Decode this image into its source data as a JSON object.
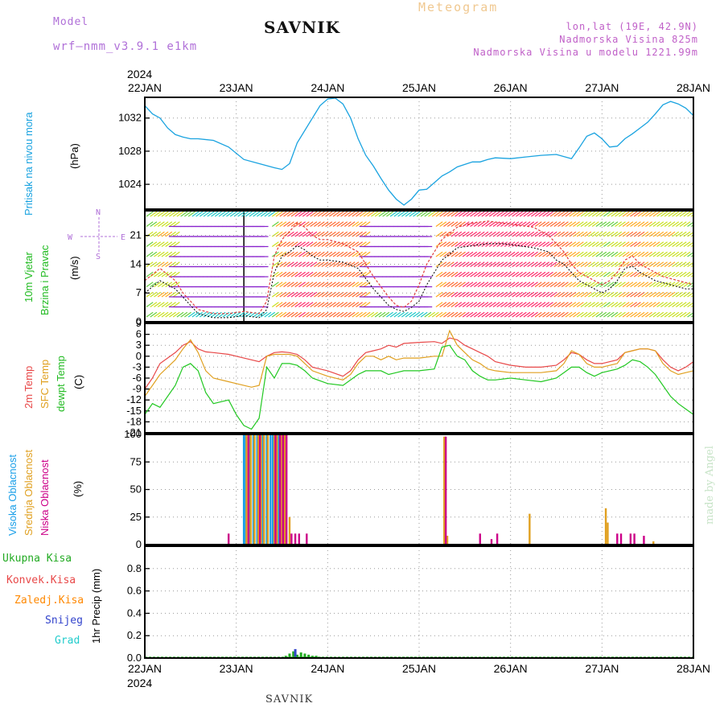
{
  "header": {
    "model_label": "Model",
    "model_name": "wrf–nmm_v3.9.1  e1km",
    "station": "SAVNIK",
    "meteogram": "Meteogram",
    "lonlat": "lon,lat (19E, 42.9N)",
    "elev": "Nadmorska Visina 825m",
    "elev_model": "Nadmorska Visina u modelu 1221.99m",
    "footer_station": "SAVNIK",
    "watermark": "made by Angel",
    "year_top": "2024",
    "year_bottom": "2024"
  },
  "colors": {
    "pressure": "#1aa3e0",
    "wind_speed_mean": "#000000",
    "wind_gust": "#e04040",
    "temp2m": "#e84848",
    "sfc_temp": "#e0a020",
    "dewpt": "#22c822",
    "cloud_high": "#1a9fe8",
    "cloud_mid": "#e0a020",
    "cloud_low": "#cc0088",
    "precip_total": "#22aa22",
    "precip_conv": "#e84848",
    "precip_frozen": "#ff8800",
    "snow": "#3344cc",
    "grad": "#22cccc",
    "wind_east": "#8822cc",
    "wind_west": "#ff3355"
  },
  "chart_data": [
    {
      "type": "line",
      "panel": "pressure",
      "labels": [
        "Pritisak na nivou mora",
        "(hPa)"
      ],
      "x": [
        "22JAN",
        "23JAN",
        "24JAN",
        "25JAN",
        "26JAN",
        "27JAN",
        "28JAN"
      ],
      "xlim": [
        0,
        144
      ],
      "ylim": [
        1021,
        1034.5
      ],
      "yticks": [
        1024,
        1028,
        1032
      ],
      "series": [
        {
          "x": [
            0,
            2,
            4,
            6,
            8,
            10,
            12,
            14,
            18,
            22,
            26,
            30,
            34,
            36,
            38,
            40,
            44,
            46,
            48,
            50,
            52,
            54,
            56,
            58,
            60,
            62,
            64,
            66,
            68,
            70,
            72,
            74,
            76,
            78,
            80,
            82,
            84,
            86,
            88,
            90,
            92,
            96,
            100,
            104,
            108,
            112,
            114,
            116,
            118,
            120,
            122,
            124,
            126,
            128,
            130,
            132,
            134,
            136,
            138,
            140,
            142,
            144
          ],
          "y": [
            1033.5,
            1032.5,
            1032,
            1030.8,
            1030,
            1029.7,
            1029.5,
            1029.5,
            1029.3,
            1028.5,
            1027,
            1026.5,
            1026,
            1025.8,
            1026.5,
            1029,
            1032,
            1033.5,
            1034.3,
            1034.4,
            1033.7,
            1032,
            1029.5,
            1027.5,
            1026.2,
            1024.7,
            1023.3,
            1022.2,
            1021.5,
            1022.2,
            1023.3,
            1023.4,
            1024.2,
            1025,
            1025.5,
            1026.1,
            1026.4,
            1026.7,
            1026.7,
            1027,
            1027.2,
            1027.1,
            1027.3,
            1027.5,
            1027.6,
            1027.1,
            1028.4,
            1029.8,
            1030.2,
            1029.5,
            1028.5,
            1028.6,
            1029.5,
            1030.1,
            1030.8,
            1031.5,
            1032.5,
            1033.6,
            1034,
            1033.7,
            1033.2,
            1032.3
          ]
        }
      ]
    },
    {
      "type": "line",
      "panel": "wind",
      "labels": [
        "10m Vjetar",
        "Brzina i Pravac",
        "(m/s)"
      ],
      "xlim": [
        0,
        144
      ],
      "ylim": [
        0,
        27
      ],
      "yticks": [
        0,
        7,
        14,
        21
      ],
      "compass": [
        "N",
        "S",
        "W",
        "E"
      ],
      "series": [
        {
          "name": "mean",
          "x": [
            0,
            4,
            8,
            10,
            12,
            14,
            18,
            22,
            26,
            30,
            32,
            34,
            36,
            38,
            40,
            42,
            44,
            46,
            48,
            52,
            56,
            60,
            64,
            66,
            68,
            70,
            72,
            74,
            78,
            82,
            86,
            90,
            94,
            98,
            102,
            106,
            108,
            110,
            112,
            114,
            116,
            118,
            120,
            122,
            124,
            126,
            128,
            130,
            132,
            134,
            136,
            138,
            140,
            142,
            144
          ],
          "y": [
            7,
            10,
            8,
            6,
            4,
            2,
            1,
            1,
            1.5,
            1,
            3,
            12,
            16,
            17,
            18.5,
            17.5,
            16,
            15,
            15,
            14.5,
            13,
            8,
            4,
            3,
            2.5,
            3.5,
            5,
            9,
            15,
            18,
            18.5,
            19,
            19,
            18.5,
            18,
            17,
            15,
            14,
            12,
            10,
            9,
            8,
            7,
            8,
            10,
            13,
            13.5,
            12,
            11,
            10,
            9.5,
            9,
            8.5,
            8,
            8
          ]
        },
        {
          "name": "gust",
          "x": [
            0,
            4,
            8,
            10,
            12,
            14,
            18,
            22,
            26,
            30,
            32,
            34,
            36,
            38,
            40,
            42,
            44,
            46,
            48,
            52,
            56,
            60,
            64,
            66,
            68,
            70,
            72,
            74,
            78,
            82,
            86,
            90,
            94,
            98,
            102,
            106,
            108,
            110,
            112,
            114,
            116,
            118,
            120,
            122,
            124,
            126,
            128,
            130,
            132,
            134,
            136,
            138,
            140,
            142,
            144
          ],
          "y": [
            10,
            13,
            10,
            7,
            5,
            3,
            2,
            2,
            2.5,
            2,
            5,
            16,
            20,
            22,
            24,
            23,
            21,
            20,
            20,
            19,
            17,
            11,
            6,
            4,
            3.5,
            5,
            9,
            14,
            20,
            23,
            24,
            24.5,
            24,
            23.5,
            23,
            21,
            19,
            17,
            14,
            12,
            11,
            10,
            9,
            10,
            12,
            15,
            16,
            14,
            13,
            12,
            11,
            10.5,
            10,
            9.5,
            9
          ]
        }
      ]
    },
    {
      "type": "line",
      "panel": "temperature",
      "labels": [
        "2m Temp",
        "SFC Temp",
        "dewpt Temp",
        "(C)"
      ],
      "xlim": [
        0,
        144
      ],
      "ylim": [
        -21,
        9
      ],
      "yticks": [
        -21,
        -18,
        -15,
        -12,
        -9,
        -6,
        -3,
        0,
        3,
        6,
        9
      ],
      "series": [
        {
          "name": "2m Temp",
          "x": [
            0,
            2,
            4,
            8,
            10,
            12,
            14,
            16,
            18,
            22,
            24,
            26,
            28,
            30,
            32,
            34,
            36,
            38,
            40,
            42,
            44,
            48,
            52,
            54,
            56,
            58,
            60,
            62,
            64,
            66,
            68,
            72,
            76,
            78,
            80,
            82,
            84,
            86,
            88,
            90,
            92,
            96,
            100,
            104,
            108,
            110,
            112,
            114,
            116,
            118,
            120,
            124,
            126,
            128,
            130,
            132,
            134,
            136,
            138,
            140,
            142,
            144
          ],
          "y": [
            -9,
            -6,
            -2,
            1,
            3,
            4,
            2,
            1.2,
            1,
            0.5,
            0,
            -0.5,
            -1,
            -1.5,
            0,
            1,
            1.2,
            1,
            0.5,
            -1,
            -3,
            -4,
            -5.5,
            -4,
            -1,
            1,
            1.5,
            2,
            3,
            2.5,
            3.5,
            3.8,
            4,
            3.5,
            5,
            4.5,
            3,
            2,
            1,
            0,
            -1.5,
            -2.5,
            -3,
            -3,
            -2.5,
            -1,
            1,
            0.5,
            -1,
            -2,
            -2,
            -1,
            1,
            1.5,
            2,
            2,
            1.5,
            -1,
            -3,
            -4,
            -3,
            -1.5
          ]
        },
        {
          "name": "SFC Temp",
          "x": [
            0,
            2,
            4,
            8,
            10,
            12,
            14,
            16,
            18,
            22,
            24,
            26,
            28,
            30,
            32,
            34,
            36,
            38,
            40,
            42,
            44,
            48,
            52,
            54,
            56,
            58,
            60,
            62,
            64,
            66,
            68,
            72,
            76,
            78,
            80,
            82,
            84,
            86,
            88,
            90,
            92,
            96,
            100,
            104,
            108,
            110,
            112,
            114,
            116,
            118,
            120,
            124,
            126,
            128,
            130,
            132,
            134,
            136,
            138,
            140,
            142,
            144
          ],
          "y": [
            -11,
            -8,
            -5,
            -1,
            2,
            4.5,
            1,
            -4,
            -6,
            -7,
            -7.5,
            -8,
            -8.5,
            -8,
            0,
            0.5,
            0.5,
            0.5,
            0,
            -2,
            -4,
            -5.5,
            -6.5,
            -5,
            -2,
            0,
            0,
            -1,
            0,
            -1,
            -0.5,
            -0.5,
            0,
            0,
            7,
            3,
            1,
            -1,
            -2,
            -3.5,
            -4,
            -4.5,
            -4.5,
            -4.5,
            -4,
            -2,
            1.5,
            0.5,
            -2,
            -3,
            -3,
            -2,
            1,
            1.5,
            2,
            2,
            1.5,
            -2,
            -4,
            -5,
            -4.5,
            -4
          ]
        },
        {
          "name": "dewpt Temp",
          "x": [
            0,
            2,
            4,
            8,
            10,
            12,
            14,
            16,
            18,
            22,
            24,
            26,
            28,
            30,
            32,
            34,
            36,
            38,
            40,
            42,
            44,
            48,
            52,
            54,
            56,
            58,
            60,
            62,
            64,
            66,
            68,
            72,
            76,
            78,
            80,
            82,
            84,
            86,
            88,
            90,
            92,
            96,
            100,
            104,
            108,
            110,
            112,
            114,
            116,
            118,
            120,
            124,
            126,
            128,
            130,
            132,
            134,
            136,
            138,
            140,
            142,
            144
          ],
          "y": [
            -16,
            -13,
            -14,
            -8,
            -3,
            -2,
            -4,
            -10,
            -13,
            -12,
            -16,
            -19,
            -20,
            -17,
            -3,
            -6,
            -2,
            -2,
            -2.5,
            -4,
            -6,
            -7.5,
            -8,
            -6.5,
            -5,
            -4,
            -4,
            -4,
            -5,
            -4.5,
            -4,
            -4,
            -3.5,
            2.5,
            3,
            0,
            -1,
            -4,
            -5.5,
            -6.5,
            -6.5,
            -6,
            -6.5,
            -7,
            -6,
            -4.5,
            -3,
            -3,
            -4.5,
            -5.5,
            -4.5,
            -3.5,
            -2.5,
            -1,
            -1.5,
            -3,
            -5,
            -8,
            -11,
            -13,
            -14.5,
            -16
          ]
        }
      ]
    },
    {
      "type": "bar",
      "panel": "clouds",
      "labels": [
        "Visoka Oblacnost",
        "Srednja Oblacnost",
        "Niska Oblacnost",
        "(%)"
      ],
      "xlim": [
        0,
        144
      ],
      "ylim": [
        0,
        100
      ],
      "yticks": [
        0,
        25,
        50,
        75,
        100
      ],
      "series": [
        {
          "name": "Visoka Oblacnost",
          "x": [
            26,
            26.5,
            27.5,
            28.5,
            29.5,
            31,
            32,
            33,
            33.6,
            35
          ],
          "values": [
            100,
            100,
            100,
            100,
            100,
            100,
            100,
            100,
            100,
            100
          ]
        },
        {
          "name": "Srednja Oblacnost",
          "x": [
            26.7,
            27.8,
            28.8,
            29.8,
            30.5,
            31.3,
            32.3,
            34,
            34.7,
            36,
            36.7,
            38,
            78.6,
            79.4,
            101,
            121,
            121.5,
            133.5
          ],
          "values": [
            100,
            100,
            100,
            100,
            100,
            100,
            100,
            100,
            100,
            100,
            100,
            25,
            98,
            8,
            28,
            33,
            20,
            3
          ]
        },
        {
          "name": "Niska Oblacnost",
          "x": [
            22,
            27.2,
            30.2,
            34.3,
            35.5,
            36.3,
            37.2,
            38.5,
            39.5,
            40.5,
            42.5,
            79,
            88,
            91,
            92.5,
            124,
            125,
            127.5,
            128.5,
            131
          ],
          "values": [
            10,
            100,
            100,
            100,
            100,
            100,
            100,
            10,
            10,
            10,
            10,
            98,
            10,
            5,
            10,
            10,
            10,
            10,
            10,
            8
          ]
        }
      ]
    },
    {
      "type": "bar",
      "panel": "precip",
      "labels": [
        "Ukupna Kisa",
        "Konvek.Kisa",
        "Zaledj.Kisa",
        "Snijeg",
        "Grad",
        "1hr Precip (mm)"
      ],
      "xlim": [
        0,
        144
      ],
      "ylim": [
        0,
        1
      ],
      "yticks": [
        0,
        0.2,
        0.4,
        0.6,
        0.8
      ],
      "series": [
        {
          "name": "Ukupna Kisa",
          "x": [
            37,
            38,
            39,
            40,
            41,
            42,
            43,
            44,
            45,
            46
          ],
          "values": [
            0.02,
            0.04,
            0.06,
            0.03,
            0.05,
            0.04,
            0.03,
            0.02,
            0.02,
            0.01
          ]
        },
        {
          "name": "Snijeg",
          "x": [
            39.5
          ],
          "values": [
            0.08
          ]
        }
      ]
    }
  ]
}
